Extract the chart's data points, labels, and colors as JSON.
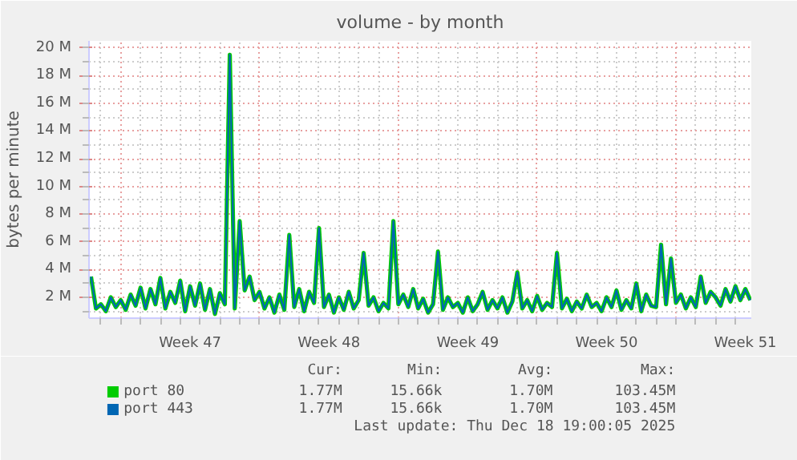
{
  "chart_data": {
    "type": "line",
    "title": "volume - by month",
    "ylabel": "bytes per minute",
    "categories": [
      null,
      null,
      null,
      null,
      null,
      null,
      null,
      null,
      null,
      null,
      null,
      null,
      null,
      null,
      null,
      null,
      null,
      null,
      null,
      null,
      "Week 47",
      null,
      null,
      null,
      null,
      null,
      null,
      null,
      null,
      null,
      null,
      null,
      null,
      null,
      null,
      null,
      null,
      null,
      null,
      null,
      null,
      null,
      null,
      null,
      null,
      null,
      null,
      null,
      "Week 48",
      null,
      null,
      null,
      null,
      null,
      null,
      null,
      null,
      null,
      null,
      null,
      null,
      null,
      null,
      null,
      null,
      null,
      null,
      null,
      null,
      null,
      null,
      null,
      null,
      null,
      null,
      null,
      "Week 49",
      null,
      null,
      null,
      null,
      null,
      null,
      null,
      null,
      null,
      null,
      null,
      null,
      null,
      null,
      null,
      null,
      null,
      null,
      null,
      null,
      null,
      null,
      null,
      null,
      null,
      null,
      null,
      "Week 50",
      null,
      null,
      null,
      null,
      null,
      null,
      null,
      null,
      null,
      null,
      null,
      null,
      null,
      null,
      null,
      null,
      null,
      null,
      null,
      null,
      null,
      null,
      null,
      null,
      null,
      null,
      null,
      "Week 51",
      null
    ],
    "series": [
      {
        "name": "port 80",
        "color": "#00cc00",
        "values": [
          3500000,
          1200000,
          1500000,
          1000000,
          2000000,
          1300000,
          1800000,
          1100000,
          2200000,
          1400000,
          2700000,
          1200000,
          2600000,
          1500000,
          3400000,
          1200000,
          2400000,
          1600000,
          3200000,
          1000000,
          2800000,
          1400000,
          3000000,
          1100000,
          2600000,
          800000,
          2300000,
          1500000,
          19500000,
          1200000,
          7500000,
          2500000,
          3500000,
          1800000,
          2400000,
          1200000,
          2000000,
          900000,
          2200000,
          1100000,
          6500000,
          1300000,
          2600000,
          1000000,
          2400000,
          1600000,
          7000000,
          1300000,
          2200000,
          900000,
          2000000,
          1100000,
          2400000,
          1200000,
          1800000,
          5200000,
          1400000,
          2000000,
          1000000,
          1600000,
          1200000,
          7500000,
          1500000,
          2200000,
          1300000,
          2600000,
          1200000,
          1900000,
          900000,
          1500000,
          5300000,
          1100000,
          2000000,
          1300000,
          1600000,
          900000,
          2000000,
          1000000,
          1500000,
          2400000,
          1100000,
          1800000,
          1200000,
          2000000,
          900000,
          1700000,
          3800000,
          1200000,
          1800000,
          1000000,
          2100000,
          1100000,
          1600000,
          1300000,
          5200000,
          1200000,
          1900000,
          1000000,
          1700000,
          1200000,
          2200000,
          1300000,
          1600000,
          1000000,
          2000000,
          1300000,
          2500000,
          1100000,
          1800000,
          1200000,
          3000000,
          1000000,
          2200000,
          1400000,
          1300000,
          5800000,
          1500000,
          4800000,
          1600000,
          2200000,
          1200000,
          2000000,
          1300000,
          3500000,
          1600000,
          2400000,
          2000000,
          1400000,
          2600000,
          1700000,
          2800000,
          1800000,
          2600000,
          1800000
        ]
      },
      {
        "name": "port 443",
        "color": "#0066b3",
        "values": [
          3500000,
          1200000,
          1500000,
          1000000,
          2000000,
          1300000,
          1800000,
          1100000,
          2200000,
          1400000,
          2700000,
          1200000,
          2600000,
          1500000,
          3400000,
          1200000,
          2400000,
          1600000,
          3200000,
          1000000,
          2800000,
          1400000,
          3000000,
          1100000,
          2600000,
          800000,
          2300000,
          1500000,
          19500000,
          1200000,
          7500000,
          2500000,
          3500000,
          1800000,
          2400000,
          1200000,
          2000000,
          900000,
          2200000,
          1100000,
          6500000,
          1300000,
          2600000,
          1000000,
          2400000,
          1600000,
          7000000,
          1300000,
          2200000,
          900000,
          2000000,
          1100000,
          2400000,
          1200000,
          1800000,
          5200000,
          1400000,
          2000000,
          1000000,
          1600000,
          1200000,
          7500000,
          1500000,
          2200000,
          1300000,
          2600000,
          1200000,
          1900000,
          900000,
          1500000,
          5300000,
          1100000,
          2000000,
          1300000,
          1600000,
          900000,
          2000000,
          1000000,
          1500000,
          2400000,
          1100000,
          1800000,
          1200000,
          2000000,
          900000,
          1700000,
          3800000,
          1200000,
          1800000,
          1000000,
          2100000,
          1100000,
          1600000,
          1300000,
          5200000,
          1200000,
          1900000,
          1000000,
          1700000,
          1200000,
          2200000,
          1300000,
          1600000,
          1000000,
          2000000,
          1300000,
          2500000,
          1100000,
          1800000,
          1200000,
          3000000,
          1000000,
          2200000,
          1400000,
          1300000,
          5800000,
          1500000,
          4800000,
          1600000,
          2200000,
          1200000,
          2000000,
          1300000,
          3500000,
          1600000,
          2400000,
          2000000,
          1400000,
          2600000,
          1700000,
          2800000,
          1800000,
          2600000,
          1800000
        ]
      }
    ],
    "ylim": [
      500000,
      20500000
    ],
    "yticks": [
      {
        "value": 2000000,
        "label": "2 M"
      },
      {
        "value": 4000000,
        "label": "4 M"
      },
      {
        "value": 6000000,
        "label": "6 M"
      },
      {
        "value": 8000000,
        "label": "8 M"
      },
      {
        "value": 10000000,
        "label": "10 M"
      },
      {
        "value": 12000000,
        "label": "12 M"
      },
      {
        "value": 14000000,
        "label": "14 M"
      },
      {
        "value": 16000000,
        "label": "16 M"
      },
      {
        "value": 18000000,
        "label": "18 M"
      },
      {
        "value": 20000000,
        "label": "20 M"
      }
    ],
    "grid": true,
    "legend": "bottom",
    "line_style": "solid",
    "annotations": [
      "Cur:",
      "Min:",
      "Avg:",
      "Max:",
      "1.77M",
      "15.66k",
      "1.70M",
      "103.45M",
      "1.77M",
      "15.66k",
      "1.70M",
      "103.45M",
      "Last update: Thu Dec 18 19:00:05 2025"
    ]
  }
}
